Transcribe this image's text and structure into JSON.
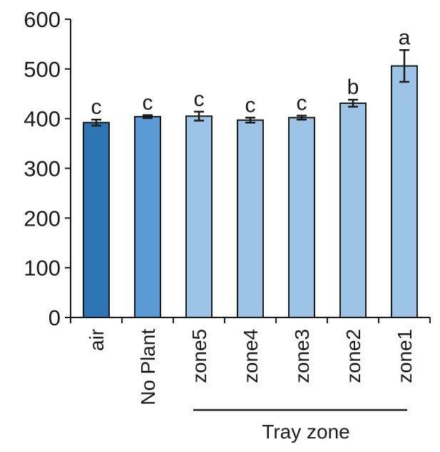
{
  "chart_data": {
    "type": "bar",
    "title": "",
    "xlabel": "",
    "ylabel": "",
    "ylim": [
      0,
      600
    ],
    "yticks": [
      0,
      100,
      200,
      300,
      400,
      500,
      600
    ],
    "ytick_labels": [
      "0",
      "100",
      "200",
      "300",
      "400",
      "500",
      "600"
    ],
    "grid": false,
    "legend": "none",
    "categories": [
      "air",
      "No Plant",
      "zone5",
      "zone4",
      "zone3",
      "zone2",
      "zone1"
    ],
    "values": [
      392,
      404,
      405,
      397,
      402,
      431,
      506
    ],
    "errors": [
      6,
      3,
      9,
      5,
      4,
      7,
      32
    ],
    "significance_letters": [
      "c",
      "c",
      "c",
      "c",
      "c",
      "b",
      "a"
    ],
    "bar_colors": [
      "#2e75b6",
      "#5b9bd5",
      "#9dc3e6",
      "#9dc3e6",
      "#9dc3e6",
      "#9dc3e6",
      "#9dc3e6"
    ],
    "group_bracket": {
      "label": "Tray zone",
      "from_category": "zone5",
      "to_category": "zone1"
    }
  }
}
